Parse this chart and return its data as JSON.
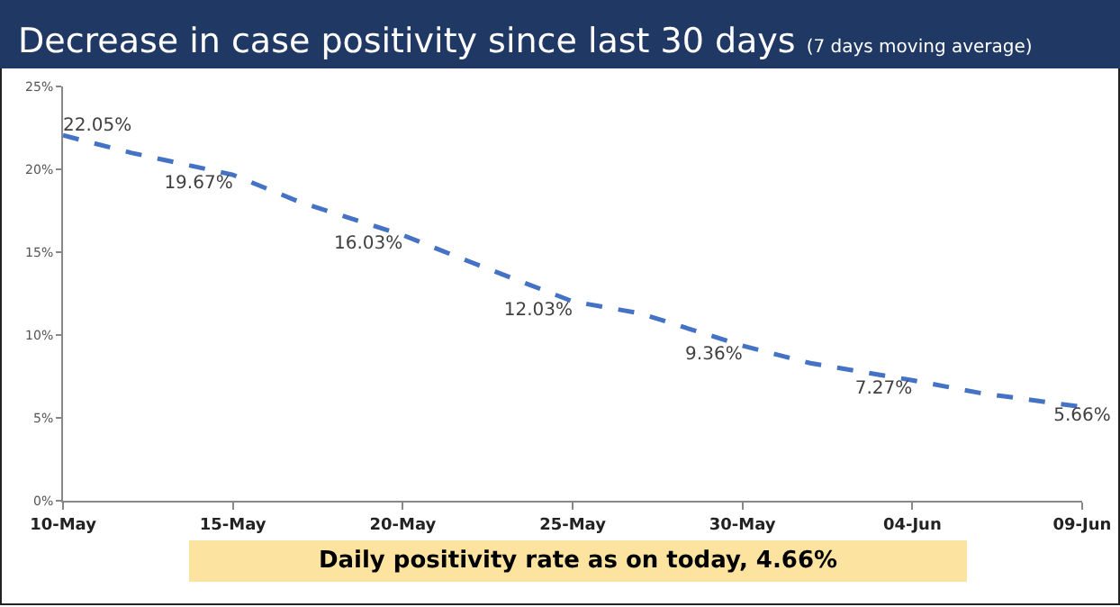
{
  "chart_data": {
    "type": "line",
    "title": "Decrease in case positivity since last 30 days",
    "subtitle": "(7 days moving average)",
    "x": [
      "--05-10",
      "--05-12",
      "--05-15",
      "--05-17",
      "--05-20",
      "--05-22",
      "--05-25",
      "--05-27",
      "--05-30",
      "--06-01",
      "--06-04",
      "--06-06",
      "--06-09"
    ],
    "series": [
      {
        "color": "#4472c4",
        "values": [
          22.05,
          21.0,
          19.67,
          18.0,
          16.03,
          14.4,
          12.03,
          11.3,
          9.36,
          8.3,
          7.27,
          6.5,
          5.66
        ],
        "value_labels": [
          "22.05%",
          null,
          "19.67%",
          null,
          "16.03%",
          null,
          "12.03%",
          null,
          "9.36%",
          null,
          "7.27%",
          null,
          "5.66%"
        ]
      }
    ],
    "xlim": [
      "--05-10",
      "--06-09"
    ],
    "xticks": [
      {
        "value": "--05-10",
        "label": "10-May"
      },
      {
        "value": "--05-15",
        "label": "15-May"
      },
      {
        "value": "--05-20",
        "label": "20-May"
      },
      {
        "value": "--05-25",
        "label": "25-May"
      },
      {
        "value": "--05-30",
        "label": "30-May"
      },
      {
        "value": "--06-04",
        "label": "04-Jun"
      },
      {
        "value": "--06-09",
        "label": "09-Jun"
      }
    ],
    "ylim": [
      0,
      25
    ],
    "yticks": [
      {
        "value": 0,
        "label": "0%"
      },
      {
        "value": 5,
        "label": "5%"
      },
      {
        "value": 10,
        "label": "10%"
      },
      {
        "value": 15,
        "label": "15%"
      },
      {
        "value": 20,
        "label": "20%"
      },
      {
        "value": 25,
        "label": "25%"
      }
    ],
    "annotations": [
      "Daily positivity rate as on today, 4.66%"
    ],
    "grid": false,
    "legend": false,
    "marker": "none",
    "line_style": "dashed"
  }
}
